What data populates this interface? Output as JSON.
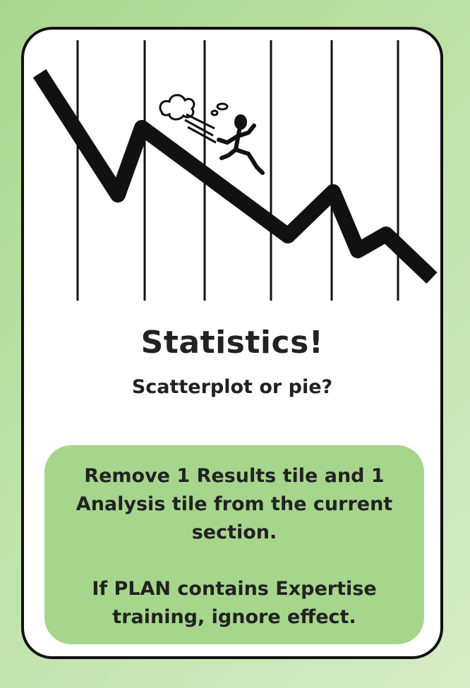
{
  "card": {
    "title": "Statistics!",
    "subtitle": "Scatterplot or pie?",
    "effect": "Remove 1 Results tile and 1 Analysis tile from the current section.",
    "condition": "If PLAN contains Expertise training,  ignore effect."
  },
  "illustration": {
    "subject": "person running down a falling line graph",
    "icons": [
      "line-graph-icon",
      "running-person-icon",
      "dust-cloud-icon"
    ]
  },
  "colors": {
    "background": "#b5dc9b",
    "effect_box": "#a6d68c",
    "card": "#ffffff",
    "ink": "#111111"
  }
}
